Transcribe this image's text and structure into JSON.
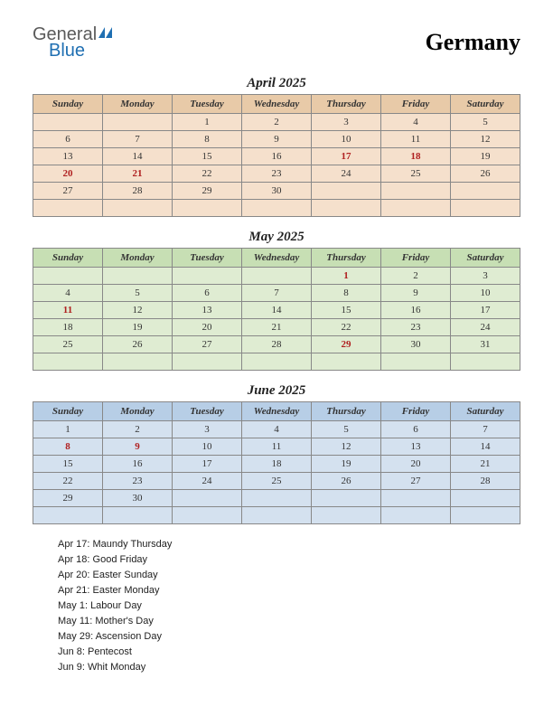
{
  "logo": {
    "text1": "General",
    "text2": "Blue",
    "icon_color": "#1f6fb2",
    "text1_color": "#5a5a5a"
  },
  "country": "Germany",
  "day_headers": [
    "Sunday",
    "Monday",
    "Tuesday",
    "Wednesday",
    "Thursday",
    "Friday",
    "Saturday"
  ],
  "months": [
    {
      "title": "April 2025",
      "header_bg": "#e8caa8",
      "cell_bg": "#f5e0cc",
      "weeks": [
        [
          "",
          "",
          "1",
          "2",
          "3",
          "4",
          "5"
        ],
        [
          "6",
          "7",
          "8",
          "9",
          "10",
          "11",
          "12"
        ],
        [
          "13",
          "14",
          "15",
          "16",
          "17",
          "18",
          "19"
        ],
        [
          "20",
          "21",
          "22",
          "23",
          "24",
          "25",
          "26"
        ],
        [
          "27",
          "28",
          "29",
          "30",
          "",
          "",
          ""
        ],
        [
          "",
          "",
          "",
          "",
          "",
          "",
          ""
        ]
      ],
      "holidays": [
        "17",
        "18",
        "20",
        "21"
      ]
    },
    {
      "title": "May 2025",
      "header_bg": "#c7dfb4",
      "cell_bg": "#dfecd2",
      "weeks": [
        [
          "",
          "",
          "",
          "",
          "1",
          "2",
          "3"
        ],
        [
          "4",
          "5",
          "6",
          "7",
          "8",
          "9",
          "10"
        ],
        [
          "11",
          "12",
          "13",
          "14",
          "15",
          "16",
          "17"
        ],
        [
          "18",
          "19",
          "20",
          "21",
          "22",
          "23",
          "24"
        ],
        [
          "25",
          "26",
          "27",
          "28",
          "29",
          "30",
          "31"
        ],
        [
          "",
          "",
          "",
          "",
          "",
          "",
          ""
        ]
      ],
      "holidays": [
        "1",
        "11",
        "29"
      ]
    },
    {
      "title": "June 2025",
      "header_bg": "#b7cee6",
      "cell_bg": "#d4e1ef",
      "weeks": [
        [
          "1",
          "2",
          "3",
          "4",
          "5",
          "6",
          "7"
        ],
        [
          "8",
          "9",
          "10",
          "11",
          "12",
          "13",
          "14"
        ],
        [
          "15",
          "16",
          "17",
          "18",
          "19",
          "20",
          "21"
        ],
        [
          "22",
          "23",
          "24",
          "25",
          "26",
          "27",
          "28"
        ],
        [
          "29",
          "30",
          "",
          "",
          "",
          "",
          ""
        ],
        [
          "",
          "",
          "",
          "",
          "",
          "",
          ""
        ]
      ],
      "holidays": [
        "8",
        "9"
      ]
    }
  ],
  "holiday_list": [
    "Apr 17: Maundy Thursday",
    "Apr 18: Good Friday",
    "Apr 20: Easter Sunday",
    "Apr 21: Easter Monday",
    "May 1: Labour Day",
    "May 11: Mother's Day",
    "May 29: Ascension Day",
    "Jun 8: Pentecost",
    "Jun 9: Whit Monday"
  ]
}
